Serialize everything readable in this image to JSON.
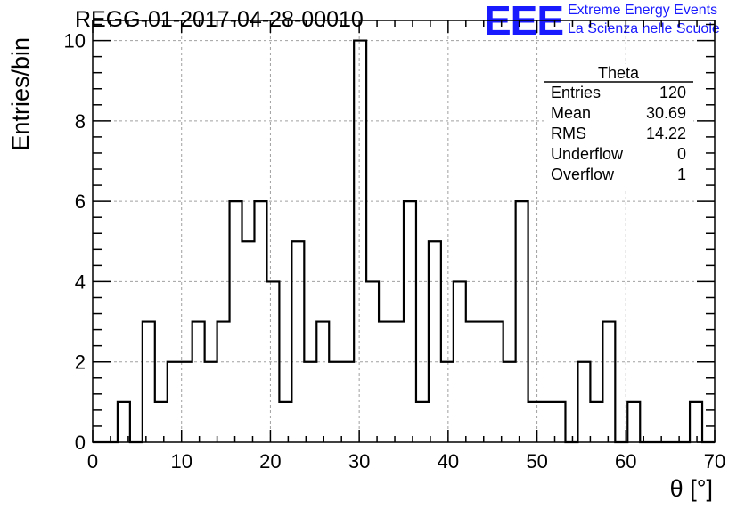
{
  "title": "REGG-01-2017-04-28-00010",
  "logo": {
    "mark": "EEE",
    "line1": "Extreme Energy Events",
    "line2": "La Scienza nelle Scuole",
    "color": "#1a1aff"
  },
  "stats": {
    "name": "Theta",
    "rows": [
      {
        "label": "Entries",
        "value": "120"
      },
      {
        "label": "Mean",
        "value": "30.69"
      },
      {
        "label": "RMS",
        "value": "14.22"
      },
      {
        "label": "Underflow",
        "value": "0"
      },
      {
        "label": "Overflow",
        "value": "1"
      }
    ]
  },
  "chart_data": {
    "type": "bar",
    "style": "step-histogram",
    "xlabel": "θ [°]",
    "ylabel": "Entries/bin",
    "xlim": [
      0,
      70
    ],
    "ylim": [
      0,
      10.5
    ],
    "bin_width": 1.4,
    "x_ticks": [
      0,
      10,
      20,
      30,
      40,
      50,
      60,
      70
    ],
    "y_ticks": [
      0,
      2,
      4,
      6,
      8,
      10
    ],
    "grid": true,
    "values": [
      0,
      0,
      1,
      0,
      3,
      1,
      2,
      2,
      3,
      2,
      3,
      6,
      5,
      6,
      4,
      1,
      5,
      2,
      3,
      2,
      2,
      10,
      4,
      3,
      3,
      6,
      1,
      5,
      2,
      4,
      3,
      3,
      3,
      2,
      6,
      1,
      1,
      1,
      0,
      2,
      1,
      3,
      0,
      1,
      0,
      0,
      0,
      0,
      1,
      0
    ]
  }
}
